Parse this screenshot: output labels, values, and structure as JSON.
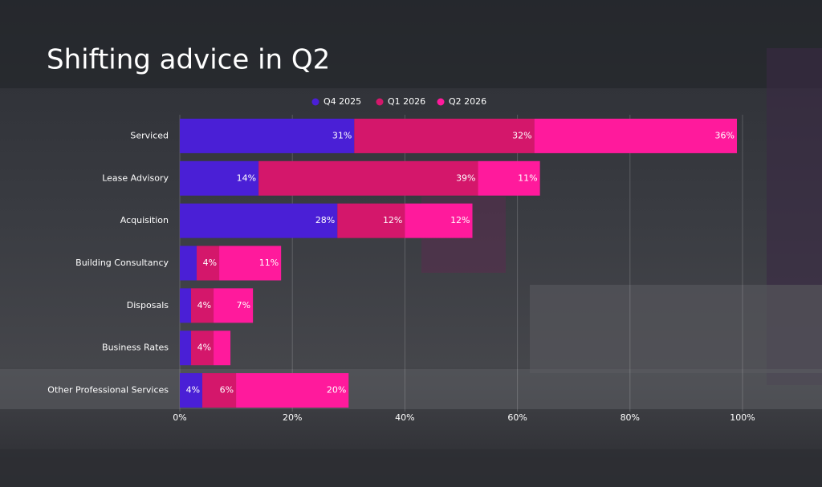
{
  "chart_data": {
    "type": "stacked-bar-horizontal",
    "title": "Shifting advice in Q2",
    "categories": [
      "Serviced",
      "Lease Advisory",
      "Acquisition",
      "Building Consultancy",
      "Disposals",
      "Business Rates",
      "Other Professional Services"
    ],
    "series": [
      {
        "name": "Q4 2025",
        "color": "#4a1fd6",
        "values": [
          31,
          14,
          28,
          3,
          2,
          2,
          4
        ],
        "value_labels": [
          "31%",
          "14%",
          "28%",
          null,
          null,
          null,
          "4%"
        ]
      },
      {
        "name": "Q1 2026",
        "color": "#d4176b",
        "values": [
          32,
          39,
          12,
          4,
          4,
          4,
          6
        ],
        "value_labels": [
          "32%",
          "39%",
          "12%",
          "4%",
          "4%",
          "4%",
          "6%"
        ]
      },
      {
        "name": "Q2 2026",
        "color": "#ff1a9c",
        "values": [
          36,
          11,
          12,
          11,
          7,
          3,
          20
        ],
        "value_labels": [
          "36%",
          "11%",
          "12%",
          "11%",
          "7%",
          null,
          "20%"
        ]
      }
    ],
    "xlim": [
      0,
      100
    ],
    "xticks": [
      {
        "value": 0,
        "label": "0%"
      },
      {
        "value": 20,
        "label": "20%"
      },
      {
        "value": 40,
        "label": "40%"
      },
      {
        "value": 60,
        "label": "60%"
      },
      {
        "value": 80,
        "label": "80%"
      },
      {
        "value": 100,
        "label": "100%"
      }
    ],
    "grid": true,
    "legend": "top"
  }
}
